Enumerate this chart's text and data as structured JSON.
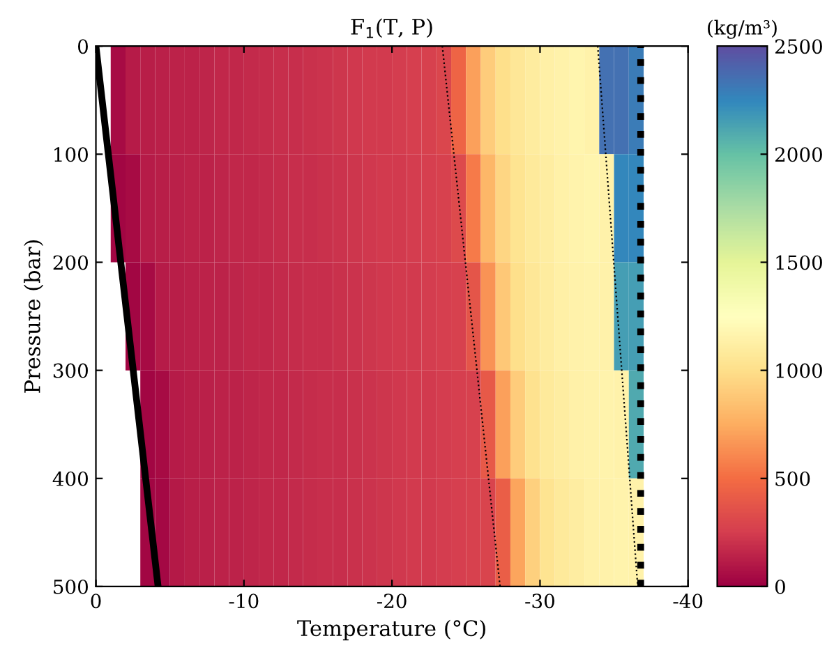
{
  "chart_data": {
    "type": "heatmap",
    "title": "F$_{1}$(T, P)",
    "xlabel": "Temperature (°C)",
    "ylabel": "Pressure (bar)",
    "clabel": "(kg/m³)",
    "x": [
      -0.5,
      -1.5,
      -2.5,
      -3.5,
      -4.5,
      -5.5,
      -6.5,
      -7.5,
      -8.5,
      -9.5,
      -10.5,
      -11.5,
      -12.5,
      -13.5,
      -14.5,
      -15.5,
      -16.5,
      -17.5,
      -18.5,
      -19.5,
      -20.5,
      -21.5,
      -22.5,
      -23.5,
      -24.5,
      -25.5,
      -26.5,
      -27.5,
      -28.5,
      -29.5,
      -30.5,
      -31.5,
      -32.5,
      -33.5,
      -34.5,
      -35.5,
      -36.5,
      -37.5,
      -38.5,
      -39.5
    ],
    "y": [
      50,
      150,
      250,
      350,
      450
    ],
    "xlim": [
      0,
      -40
    ],
    "xticks": [
      0,
      -10,
      -20,
      -30,
      -40
    ],
    "ylim": [
      500,
      0
    ],
    "yticks": [
      0,
      100,
      200,
      300,
      400,
      500
    ],
    "clim": [
      0,
      2500
    ],
    "cticks": [
      0,
      500,
      1000,
      1500,
      2000,
      2500
    ],
    "grid": false,
    "cells": [
      [
        null,
        40,
        110,
        120,
        130,
        140,
        145,
        150,
        160,
        165,
        175,
        180,
        190,
        195,
        205,
        210,
        220,
        225,
        235,
        240,
        250,
        260,
        270,
        300,
        450,
        700,
        900,
        1000,
        1060,
        1100,
        1130,
        1150,
        1170,
        1150,
        2350,
        2350,
        2300,
        null,
        null,
        null
      ],
      [
        null,
        20,
        40,
        110,
        120,
        130,
        140,
        145,
        150,
        160,
        165,
        175,
        180,
        190,
        195,
        205,
        210,
        220,
        225,
        235,
        240,
        250,
        260,
        270,
        320,
        550,
        800,
        950,
        1030,
        1080,
        1110,
        1140,
        1160,
        1170,
        1150,
        2250,
        2250,
        null,
        null,
        null
      ],
      [
        null,
        null,
        20,
        40,
        110,
        120,
        130,
        140,
        145,
        150,
        160,
        165,
        175,
        180,
        190,
        195,
        205,
        210,
        220,
        225,
        235,
        240,
        250,
        260,
        270,
        380,
        650,
        880,
        1000,
        1060,
        1100,
        1130,
        1150,
        1160,
        1150,
        2150,
        2150,
        null,
        null,
        null
      ],
      [
        null,
        null,
        null,
        20,
        40,
        110,
        120,
        130,
        140,
        145,
        150,
        160,
        165,
        175,
        180,
        190,
        195,
        205,
        210,
        220,
        225,
        235,
        240,
        250,
        260,
        270,
        400,
        700,
        900,
        1020,
        1080,
        1110,
        1140,
        1150,
        1160,
        1150,
        2100,
        null,
        null,
        null
      ],
      [
        null,
        null,
        null,
        20,
        30,
        100,
        120,
        130,
        140,
        145,
        150,
        160,
        165,
        175,
        180,
        190,
        195,
        205,
        210,
        220,
        225,
        235,
        240,
        250,
        260,
        270,
        290,
        420,
        720,
        920,
        1030,
        1080,
        1110,
        1140,
        1150,
        1160,
        1150,
        null,
        null,
        null
      ]
    ],
    "series": [
      {
        "type": "line",
        "color": "#000000",
        "line_style": "solid",
        "x": [
          0,
          -4.2
        ],
        "values": [
          0,
          500
        ]
      },
      {
        "type": "line",
        "color": "#000000",
        "line_style": "dotted",
        "x": [
          -23.4,
          -27.3
        ],
        "values": [
          0,
          500
        ]
      },
      {
        "type": "line",
        "color": "#000000",
        "line_style": "dotted",
        "x": [
          -33.9,
          -36.6
        ],
        "values": [
          0,
          500
        ]
      }
    ],
    "ref_lines": [
      {
        "axis": "x",
        "value": -36.8,
        "color": "#000000",
        "line_style": "dotted"
      }
    ]
  }
}
